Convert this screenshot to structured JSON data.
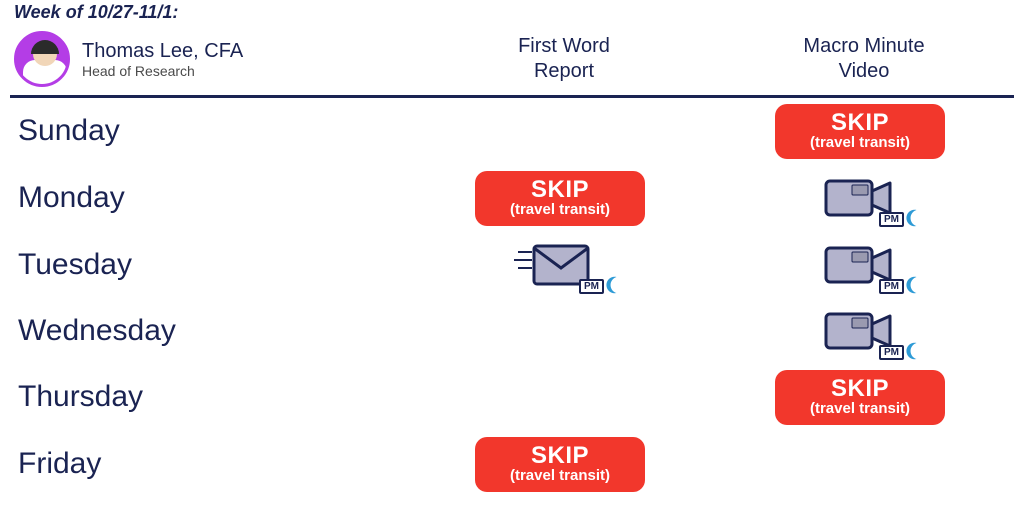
{
  "week_label": "Week of 10/27-11/1:",
  "author": {
    "name": "Thomas Lee, CFA",
    "title": "Head of Research"
  },
  "columns": {
    "report": {
      "line1": "First Word",
      "line2": "Report"
    },
    "video": {
      "line1": "Macro Minute",
      "line2": "Video"
    }
  },
  "skip": {
    "label": "SKIP",
    "sub": "(travel transit)"
  },
  "pm_label": "PM",
  "colors": {
    "text": "#1a2352",
    "divider": "#1a2352",
    "skip_bg": "#f2372c",
    "skip_text": "#ffffff",
    "avatar_ring": "#b43de6",
    "icon_fill": "#b3b3cc",
    "icon_stroke": "#1a2352",
    "moon": "#2e9bd6"
  },
  "days": [
    {
      "name": "Sunday",
      "report": null,
      "video": "skip"
    },
    {
      "name": "Monday",
      "report": "skip",
      "video": "camera"
    },
    {
      "name": "Tuesday",
      "report": "mail",
      "video": "camera"
    },
    {
      "name": "Wednesday",
      "report": null,
      "video": "camera"
    },
    {
      "name": "Thursday",
      "report": null,
      "video": "skip"
    },
    {
      "name": "Friday",
      "report": "skip",
      "video": null
    }
  ]
}
